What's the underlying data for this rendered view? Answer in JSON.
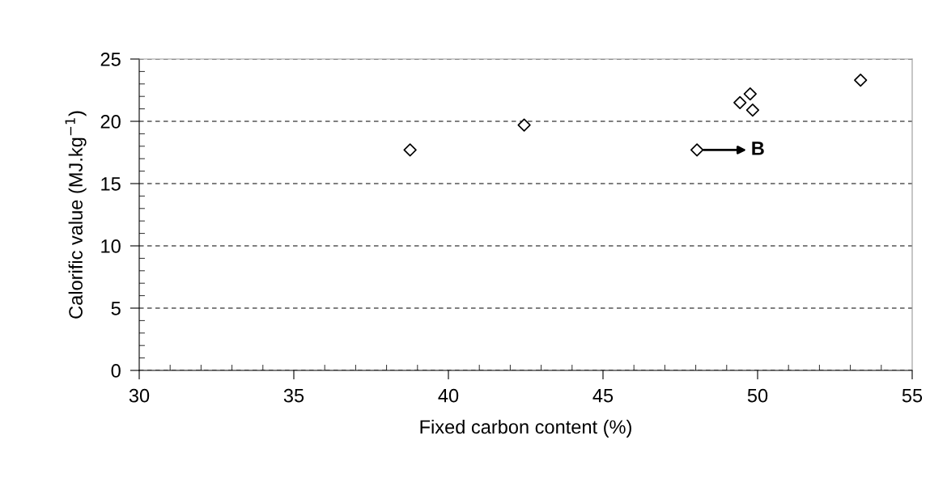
{
  "chart_data": {
    "type": "scatter",
    "xlabel": "Fixed carbon content (%)",
    "ylabel": "Calorific value (MJ.kg$^{−1}$)",
    "x": [
      38.76,
      42.45,
      48.04,
      49.43,
      49.76,
      49.84,
      53.33
    ],
    "values": [
      17.7,
      19.7,
      17.7,
      21.5,
      22.2,
      20.9,
      23.3
    ],
    "color": "#000000",
    "marker": "diamond",
    "xlim": [
      30,
      55
    ],
    "xticks": [
      30,
      35,
      40,
      45,
      50,
      55
    ],
    "ylim": [
      0,
      25
    ],
    "yticks": [
      0,
      5,
      10,
      15,
      20,
      25
    ],
    "grid": "y",
    "legend": false,
    "annotations": [
      {
        "text": "B",
        "x": 48.04,
        "y": 17.7
      }
    ]
  }
}
